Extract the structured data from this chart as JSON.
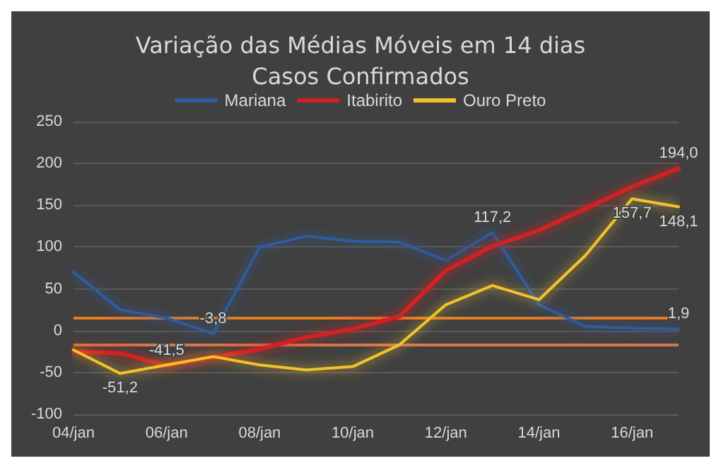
{
  "chart_data": {
    "type": "line",
    "title": "Variação das Médias Móveis em 14 dias\nCasos Confirmados",
    "categories": [
      "04/jan",
      null,
      "06/jan",
      null,
      "08/jan",
      null,
      "10/jan",
      null,
      "12/jan",
      null,
      "14/jan",
      null,
      "16/jan",
      null
    ],
    "series": [
      {
        "name": "Mariana",
        "color": "#2e5c9e",
        "values": [
          70,
          25,
          15,
          -3.8,
          100,
          113,
          107,
          106,
          84,
          117.2,
          31,
          5,
          3,
          1.9
        ],
        "value_labels": [
          null,
          null,
          null,
          "-3,8",
          null,
          null,
          null,
          null,
          null,
          "117,2",
          null,
          null,
          null,
          "1,9"
        ]
      },
      {
        "name": "Itabirito",
        "color": "#d02020",
        "values": [
          -25,
          -27,
          -41.5,
          -32,
          -22,
          -8,
          2,
          17,
          72,
          101,
          120,
          146,
          172,
          194.0
        ],
        "value_labels": [
          null,
          null,
          "-41,5",
          null,
          null,
          null,
          null,
          null,
          null,
          null,
          null,
          null,
          null,
          "194,0"
        ]
      },
      {
        "name": "Ouro Preto",
        "color": "#f2c12e",
        "values": [
          -23,
          -51.2,
          -41,
          -31,
          -41,
          -47,
          -43,
          -17,
          31,
          54,
          37,
          90,
          157.7,
          148.1
        ],
        "value_labels": [
          null,
          "-51,2",
          null,
          null,
          null,
          null,
          null,
          null,
          null,
          null,
          null,
          null,
          "157,7",
          "148,1"
        ]
      }
    ],
    "ylim": [
      -100,
      250
    ],
    "yticks": [
      -100,
      -50,
      0,
      50,
      100,
      150,
      200,
      250
    ],
    "grid": "y",
    "legend": "top",
    "marker": "none",
    "line_style": "solid",
    "ref_lines": [
      {
        "axis": "y",
        "value": 15,
        "color": "#e87d22"
      },
      {
        "axis": "y",
        "value": -16,
        "color": "#d9774a"
      }
    ]
  }
}
